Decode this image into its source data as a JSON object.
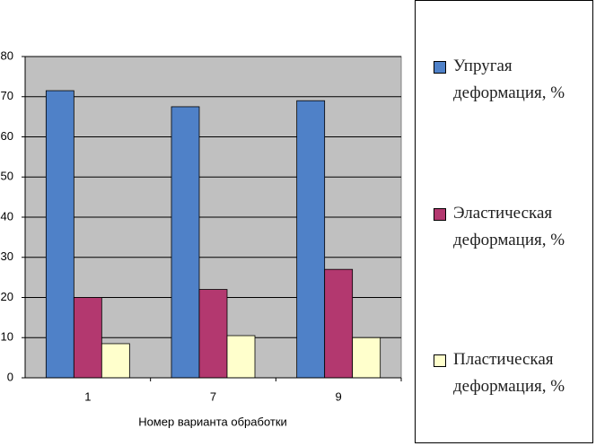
{
  "chart_data": {
    "type": "bar",
    "x_label": "Номер варианта обработки",
    "categories": [
      "1",
      "7",
      "9"
    ],
    "series": [
      {
        "name": "Упругая деформация, %",
        "color": "#4f81c8",
        "values": [
          71.5,
          67.5,
          69
        ]
      },
      {
        "name": "Эластическая деформация, %",
        "color": "#b3386f",
        "values": [
          20,
          22,
          27
        ]
      },
      {
        "name": "Пластическая деформация, %",
        "color": "#ffffcc",
        "values": [
          8.5,
          10.5,
          10
        ]
      }
    ],
    "ylim": [
      0,
      80
    ],
    "yticks": [
      0,
      10,
      20,
      30,
      40,
      50,
      60,
      70,
      80
    ],
    "grid": true,
    "legend": "right"
  }
}
